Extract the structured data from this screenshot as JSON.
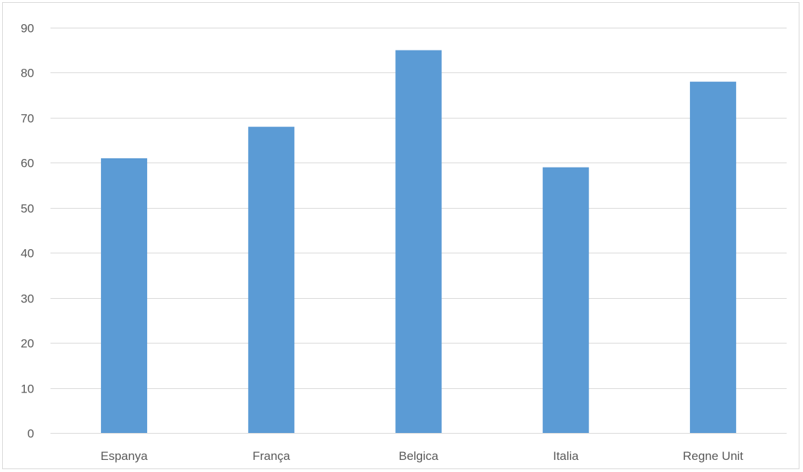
{
  "chart_data": {
    "type": "bar",
    "categories": [
      "Espanya",
      "França",
      "Belgica",
      "Italia",
      "Regne Unit"
    ],
    "series": [
      {
        "values": [
          61,
          68,
          85,
          59,
          78
        ]
      }
    ],
    "ylim": [
      0,
      90
    ],
    "yticks": [
      0,
      10,
      20,
      30,
      40,
      50,
      60,
      70,
      80,
      90
    ],
    "grid": true,
    "legend": "none",
    "bar_color": "#5b9bd5",
    "grid_color": "#d9d9d9",
    "label_color": "#595959"
  }
}
